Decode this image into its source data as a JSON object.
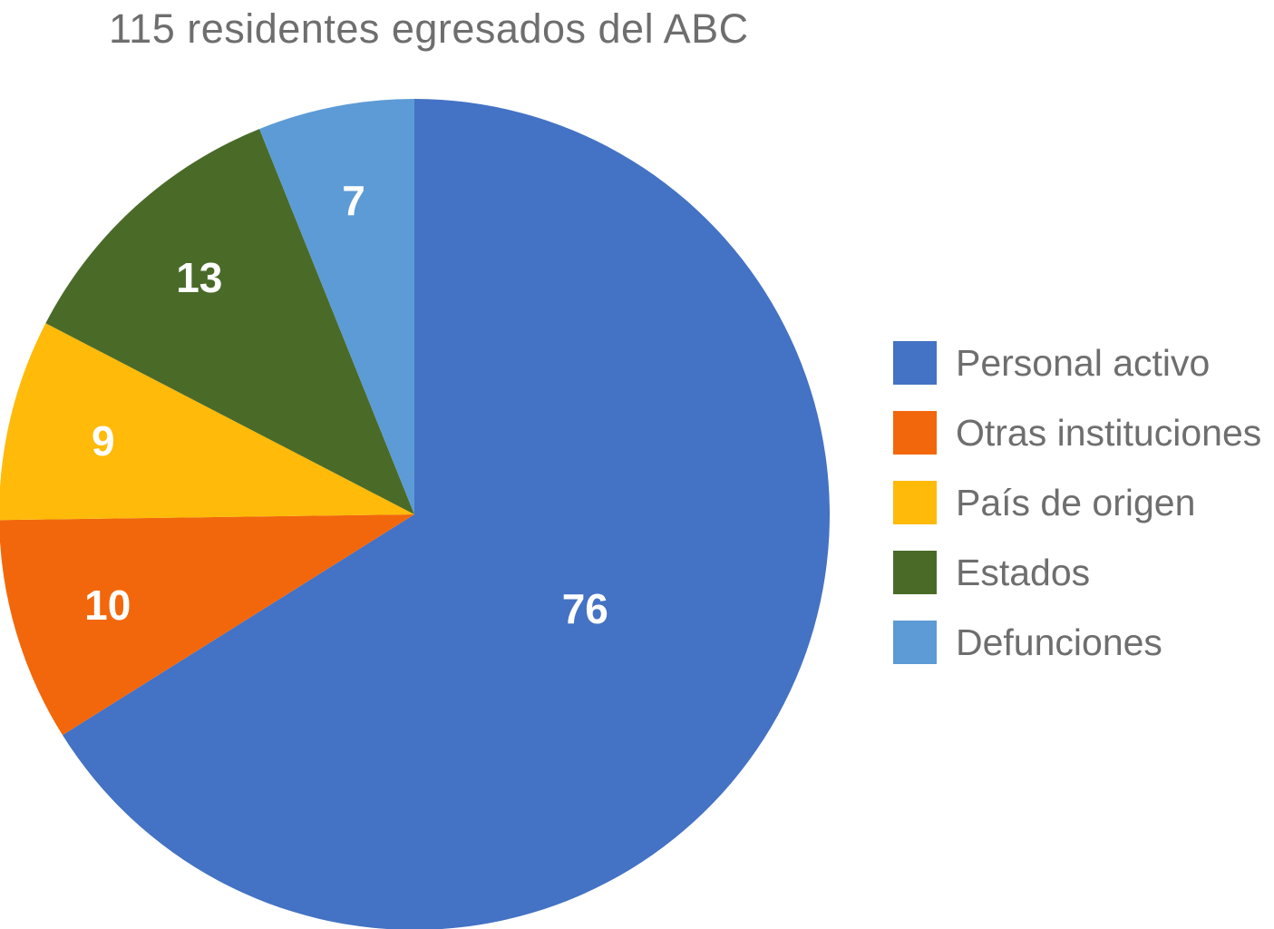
{
  "chart_data": {
    "type": "pie",
    "title": "115 residentes egresados del ABC",
    "total": 115,
    "start_angle_deg": 0,
    "direction": "clockwise",
    "legend_position": "right",
    "grid": false,
    "slices": [
      {
        "label": "Personal activo",
        "value": 76,
        "color": "#4472C4"
      },
      {
        "label": "Otras instituciones",
        "value": 10,
        "color": "#F2670B"
      },
      {
        "label": "País de origen",
        "value": 9,
        "color": "#FFBA0A"
      },
      {
        "label": "Estados",
        "value": 13,
        "color": "#4A6B28"
      },
      {
        "label": "Defunciones",
        "value": 7,
        "color": "#5C9BD6"
      }
    ],
    "data_label_color": "#FFFFFF",
    "text_color": "#6E6E6E",
    "background_color": "#FFFFFF"
  }
}
